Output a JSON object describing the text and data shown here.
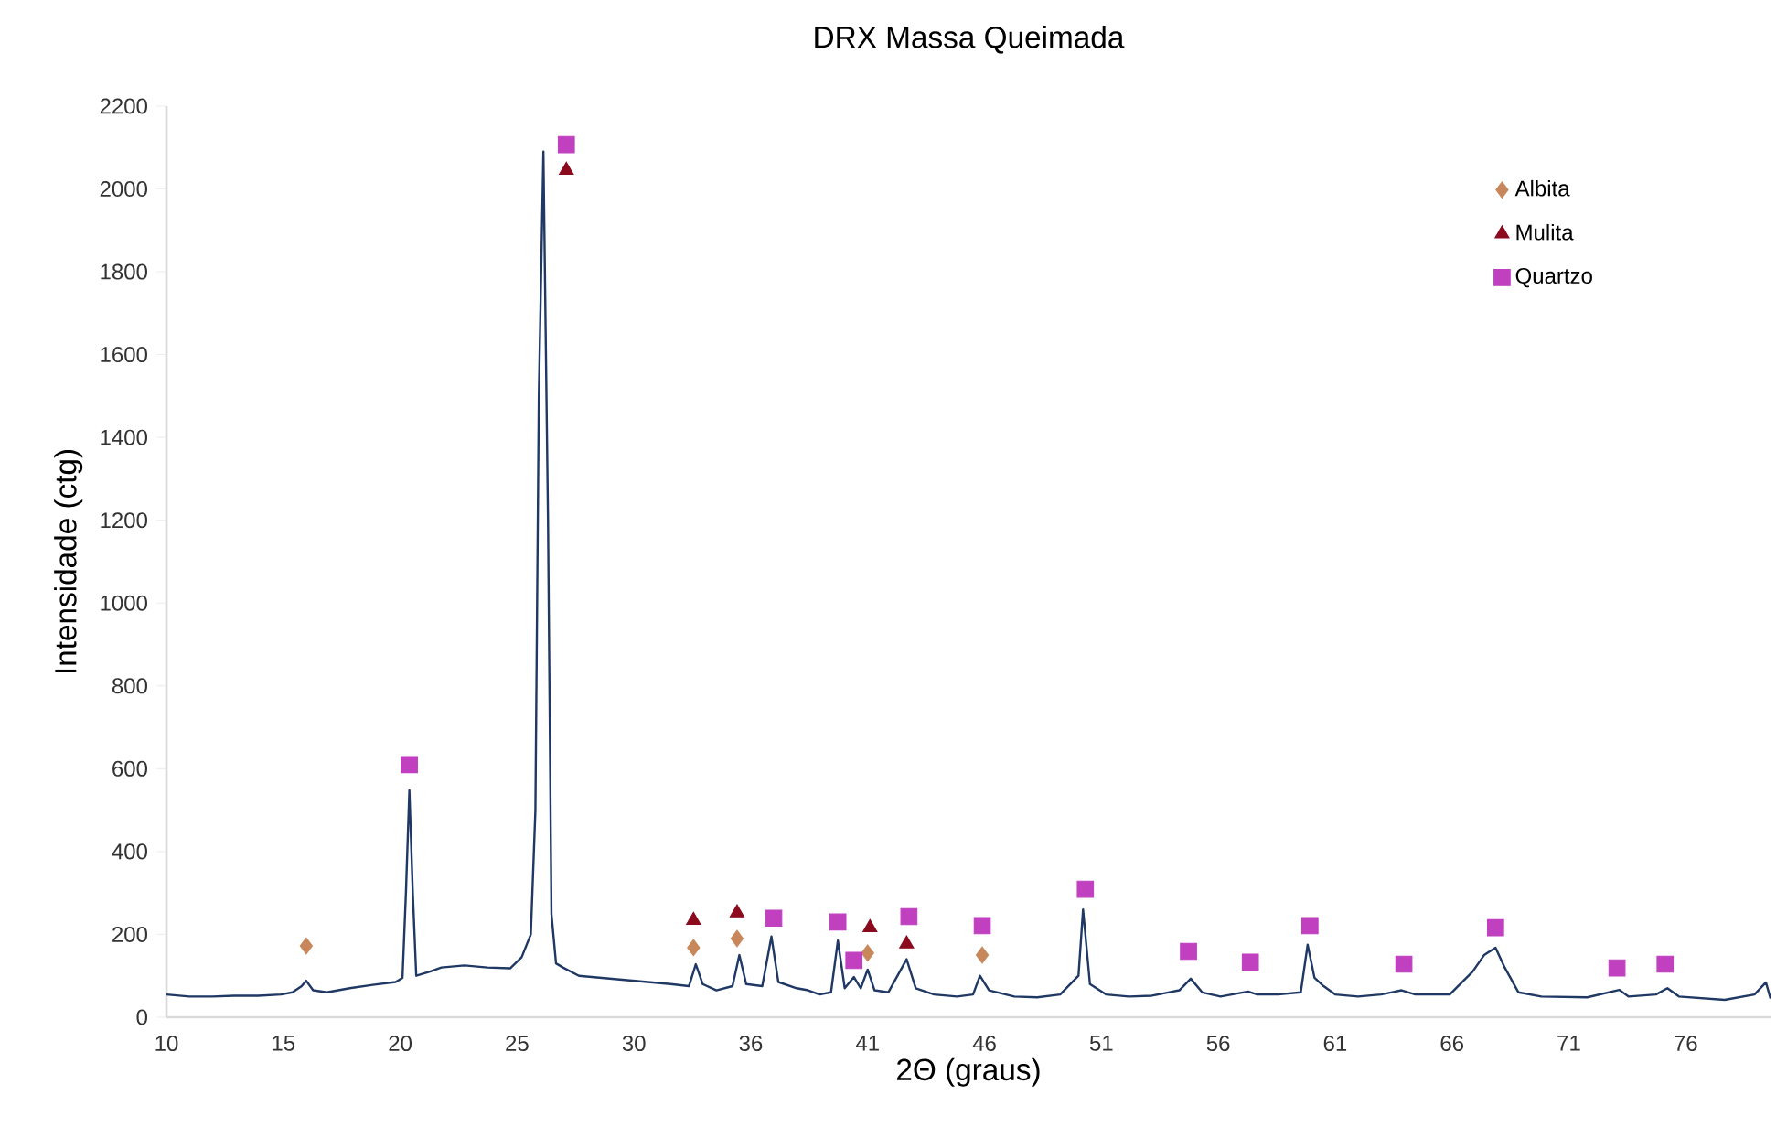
{
  "chart_data": {
    "type": "line",
    "title": "DRX Massa Queimada",
    "xlabel": "2Θ (graus)",
    "ylabel": "Intensidade (ctg)",
    "xlim": [
      10,
      80
    ],
    "ylim": [
      0,
      2200
    ],
    "xticks": [
      10,
      {
        "value": 15.1,
        "label": "15"
      },
      {
        "value": 20.2,
        "label": "20"
      },
      {
        "value": 25.3,
        "label": "25"
      },
      {
        "value": 30.4,
        "label": "30"
      },
      {
        "value": 35.5,
        "label": "36"
      },
      {
        "value": 40.6,
        "label": "41"
      },
      {
        "value": 45.7,
        "label": "46"
      },
      {
        "value": 50.8,
        "label": "51"
      },
      {
        "value": 55.9,
        "label": "56"
      },
      61,
      {
        "value": 66.1,
        "label": "66"
      },
      {
        "value": 71.2,
        "label": "71"
      },
      {
        "value": 76.3,
        "label": "76"
      }
    ],
    "yticks": [
      0,
      200,
      400,
      600,
      800,
      1000,
      1200,
      1400,
      1600,
      1800,
      2000,
      2200
    ],
    "legend": "top right",
    "series": [
      {
        "color": "#1f3864",
        "marker": "none",
        "x": [
          10,
          11,
          12,
          13,
          14,
          15,
          15.5,
          15.9,
          16.1,
          16.4,
          17,
          18,
          19,
          20,
          20.3,
          20.45,
          20.6,
          20.75,
          20.9,
          21.5,
          22,
          23,
          24,
          25,
          25.5,
          25.9,
          26.1,
          26.25,
          26.45,
          26.65,
          26.8,
          27.0,
          27.3,
          28,
          29,
          30,
          31,
          32,
          32.8,
          33.1,
          33.4,
          34,
          34.7,
          35.0,
          35.3,
          36,
          36.4,
          36.7,
          37.5,
          38,
          38.5,
          39,
          39.3,
          39.6,
          40.0,
          40.3,
          40.6,
          40.9,
          41.5,
          42.3,
          42.7,
          43.5,
          44.5,
          45.2,
          45.5,
          45.9,
          47,
          48,
          49,
          49.8,
          50.0,
          50.3,
          51,
          52,
          53,
          54.2,
          54.7,
          55.2,
          56,
          57.2,
          57.6,
          58.5,
          59.5,
          59.8,
          60.1,
          60.5,
          61,
          62,
          63,
          63.9,
          64.5,
          66,
          67.0,
          67.5,
          68.0,
          68.4,
          69,
          70,
          72,
          73.4,
          73.8,
          75,
          75.5,
          76,
          78,
          79.3,
          79.8,
          80
        ],
        "values": [
          55,
          50,
          50,
          52,
          52,
          55,
          60,
          75,
          88,
          65,
          60,
          70,
          78,
          85,
          95,
          300,
          548,
          300,
          100,
          110,
          120,
          125,
          120,
          118,
          145,
          200,
          500,
          1500,
          2090,
          1200,
          250,
          130,
          120,
          100,
          95,
          90,
          85,
          80,
          75,
          128,
          80,
          65,
          75,
          150,
          80,
          75,
          195,
          85,
          70,
          65,
          55,
          60,
          185,
          70,
          97,
          70,
          115,
          65,
          60,
          140,
          70,
          55,
          50,
          55,
          100,
          65,
          50,
          48,
          55,
          100,
          260,
          80,
          55,
          50,
          52,
          65,
          93,
          60,
          50,
          62,
          55,
          55,
          60,
          175,
          95,
          75,
          55,
          50,
          55,
          65,
          55,
          55,
          110,
          150,
          168,
          120,
          60,
          50,
          48,
          66,
          50,
          55,
          70,
          50,
          42,
          55,
          84,
          45
        ]
      },
      {
        "name": "Albita",
        "type": "scatter",
        "marker": "diamond",
        "color": "#c8875a",
        "x": [
          16.1,
          33.0,
          34.9,
          40.6,
          45.6
        ],
        "values": [
          172,
          168,
          190,
          155,
          150
        ]
      },
      {
        "name": "Mulita",
        "type": "scatter",
        "marker": "triangle",
        "color": "#8b0a1e",
        "x": [
          27.45,
          33.0,
          34.9,
          40.7,
          42.3
        ],
        "values": [
          2045,
          234,
          252,
          216,
          177
        ]
      },
      {
        "name": "Quartzo",
        "type": "scatter",
        "marker": "square",
        "color": "#c040c0",
        "x": [
          27.45,
          20.6,
          36.5,
          39.3,
          40.0,
          42.4,
          45.6,
          50.1,
          54.6,
          57.3,
          59.9,
          64.0,
          68.0,
          73.3,
          75.4
        ],
        "values": [
          2107,
          610,
          239,
          230,
          137,
          243,
          221,
          309,
          159,
          133,
          221,
          128,
          216,
          119,
          128
        ]
      }
    ]
  }
}
